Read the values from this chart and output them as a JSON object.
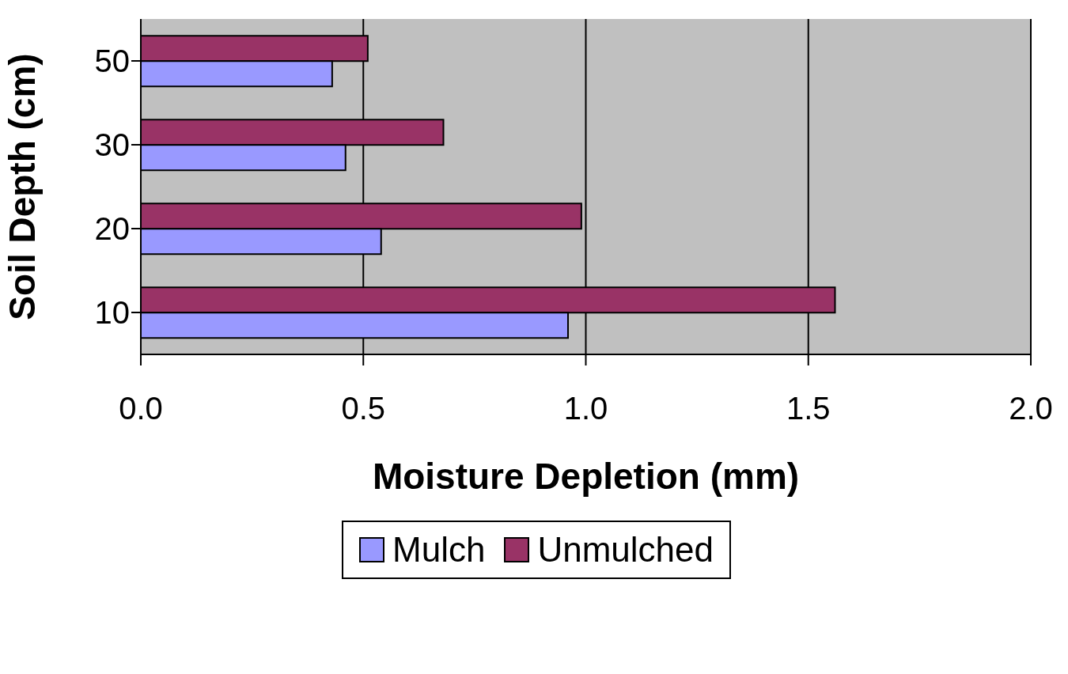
{
  "chart_data": {
    "type": "bar",
    "orientation": "horizontal",
    "xlabel": "Moisture Depletion (mm)",
    "ylabel": "Soil Depth (cm)",
    "categories": [
      "50",
      "30",
      "20",
      "10"
    ],
    "series": [
      {
        "name": "Mulch",
        "color": "#9999ff",
        "values": [
          0.43,
          0.46,
          0.54,
          0.96
        ]
      },
      {
        "name": "Unmulched",
        "color": "#993366",
        "values": [
          0.51,
          0.68,
          0.99,
          1.56
        ]
      }
    ],
    "xlim": [
      0,
      2
    ],
    "xticks": [
      {
        "value": 0,
        "label": "0.0"
      },
      0.5,
      {
        "value": 1,
        "label": "1.0"
      },
      1.5,
      {
        "value": 2,
        "label": "2.0"
      }
    ],
    "grid": "x",
    "legend": "bottom"
  }
}
